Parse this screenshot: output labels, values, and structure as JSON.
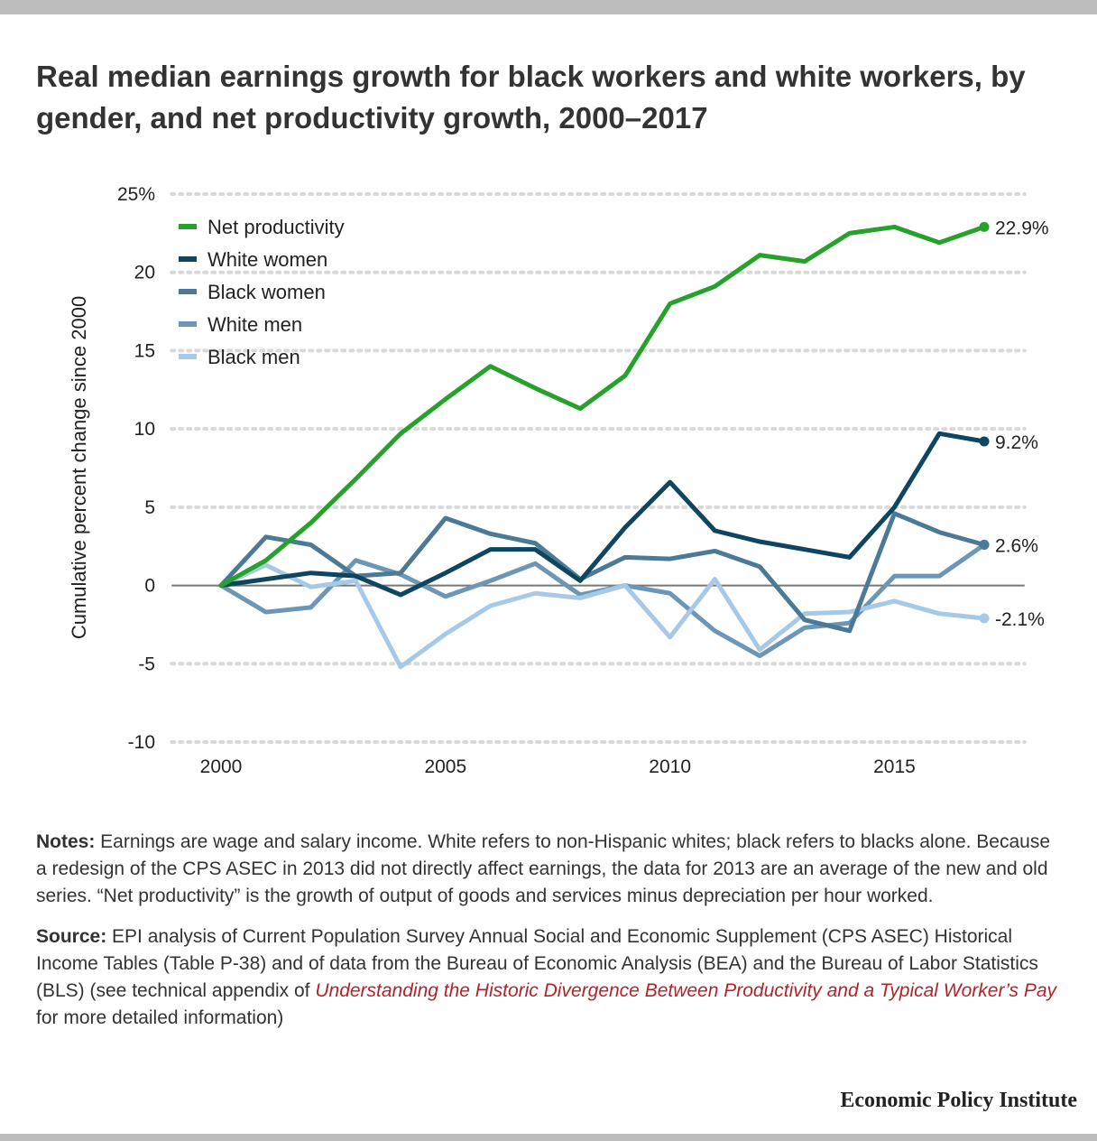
{
  "title": "Real median earnings growth for black workers and white workers, by gender, and net productivity growth, 2000–2017",
  "chart_data": {
    "type": "line",
    "ylabel": "Cumulative percent change since 2000",
    "ylim": [
      -10,
      25
    ],
    "xlim": [
      1999,
      2018
    ],
    "x_ticks": [
      2000,
      2005,
      2010,
      2015
    ],
    "y_ticks": [
      25,
      20,
      15,
      10,
      5,
      0,
      -5,
      -10
    ],
    "y_tick_labels": [
      "25%",
      "20",
      "15",
      "10",
      "5",
      "0",
      "-5",
      "-10"
    ],
    "grid": true,
    "legend_position": "top-left",
    "x": [
      2000,
      2001,
      2002,
      2003,
      2004,
      2005,
      2006,
      2007,
      2008,
      2009,
      2010,
      2011,
      2012,
      2013,
      2014,
      2015,
      2016,
      2017
    ],
    "series": [
      {
        "name": "Net productivity",
        "color": "#26a22a",
        "end_label": "22.9%",
        "values": [
          0,
          1.6,
          4.0,
          6.8,
          9.7,
          11.9,
          14.0,
          12.6,
          11.3,
          13.4,
          18.0,
          19.1,
          21.1,
          20.7,
          22.5,
          22.9,
          21.9,
          22.9
        ]
      },
      {
        "name": "White women",
        "color": "#0e4560",
        "end_label": "9.2%",
        "values": [
          0,
          0.4,
          0.8,
          0.6,
          -0.6,
          0.8,
          2.3,
          2.3,
          0.3,
          3.7,
          6.6,
          3.5,
          2.8,
          2.3,
          1.8,
          5.0,
          9.7,
          9.2
        ]
      },
      {
        "name": "Black women",
        "color": "#4c7a96",
        "end_label": "2.6%",
        "values": [
          0,
          3.1,
          2.6,
          0.6,
          0.8,
          4.3,
          3.3,
          2.7,
          0.4,
          1.8,
          1.7,
          2.2,
          1.2,
          -2.2,
          -2.9,
          4.6,
          3.4,
          2.6
        ]
      },
      {
        "name": "White men",
        "color": "#6c96b6",
        "end_label": "",
        "values": [
          0,
          -1.7,
          -1.4,
          1.6,
          0.7,
          -0.7,
          0.3,
          1.4,
          -0.6,
          0.0,
          -0.5,
          -2.9,
          -4.5,
          -2.7,
          -2.4,
          0.6,
          0.6,
          2.6
        ]
      },
      {
        "name": "Black men",
        "color": "#a7c9e8",
        "end_label": "-2.1%",
        "values": [
          0,
          1.3,
          -0.1,
          0.3,
          -5.2,
          -3.1,
          -1.3,
          -0.5,
          -0.8,
          0.0,
          -3.3,
          0.4,
          -4.1,
          -1.8,
          -1.7,
          -1.0,
          -1.8,
          -2.1
        ]
      }
    ]
  },
  "notes": {
    "label": "Notes:",
    "text": " Earnings are wage and salary income. White refers to non-Hispanic whites; black refers to blacks alone. Because a redesign of the CPS ASEC in 2013 did not directly affect earnings, the data for 2013 are an average of the new and old series. “Net productivity” is the growth of output of goods and services minus depreciation per hour worked."
  },
  "source": {
    "label": "Source:",
    "text_before": " EPI analysis of Current Population Survey Annual Social and Economic Supplement (CPS ASEC) Historical Income Tables (Table P-38) and of data from the Bureau of Economic Analysis (BEA) and the Bureau of Labor Statistics (BLS) (see technical appendix of ",
    "link_text": "Understanding the Historic Divergence Between Productivity and a Typical Worker’s Pay",
    "text_after": " for more detailed information)"
  },
  "brand": "Economic Policy Institute"
}
